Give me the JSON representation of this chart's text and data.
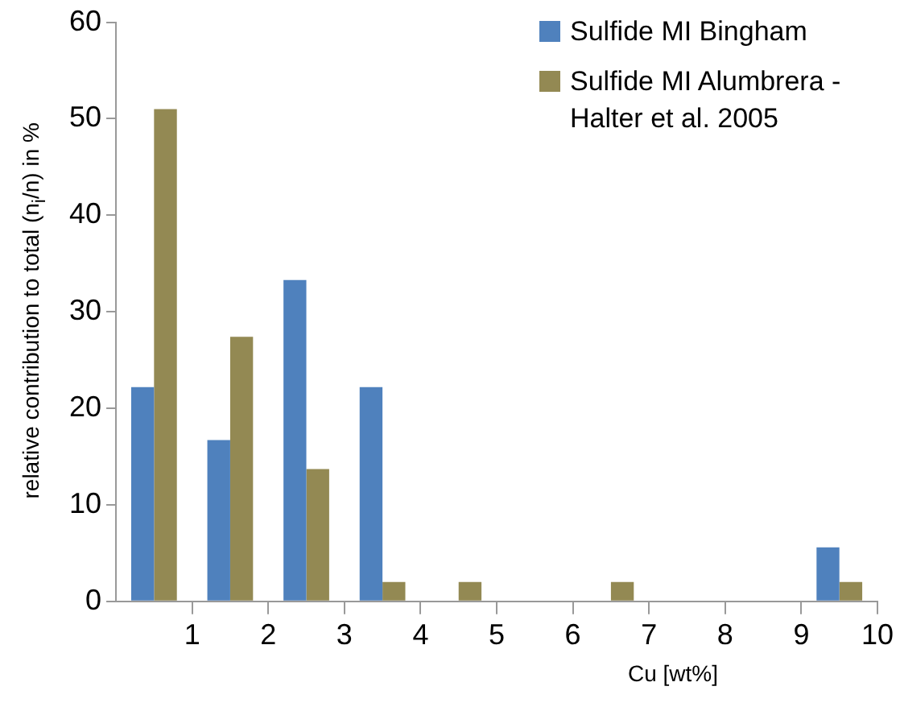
{
  "chart_data": {
    "type": "histogram",
    "xlabel": "Cu [wt%]",
    "ylabel": "relative contribution to total (n$_{i}$/n) in %",
    "bins": [
      0,
      1,
      2,
      3,
      4,
      5,
      6,
      7,
      8,
      9,
      10
    ],
    "series": [
      {
        "name": "Sulfide MI Bingham",
        "color": "#4f81bd",
        "values": [
          22.2,
          16.7,
          33.3,
          22.2,
          0,
          0,
          0,
          0,
          0,
          5.6
        ]
      },
      {
        "name": "Sulfide MI Alumbrera - Halter et al. 2005",
        "color": "#938953",
        "values": [
          51,
          27.4,
          13.7,
          2,
          2,
          0,
          2,
          0,
          0,
          2
        ]
      }
    ],
    "xlim": [
      0,
      10
    ],
    "xticks": [
      1,
      2,
      3,
      4,
      5,
      6,
      7,
      8,
      9,
      10
    ],
    "ylim": [
      0,
      60
    ],
    "yticks": [
      0,
      10,
      20,
      30,
      40,
      50,
      60
    ],
    "grid": false,
    "legend": "top right"
  }
}
